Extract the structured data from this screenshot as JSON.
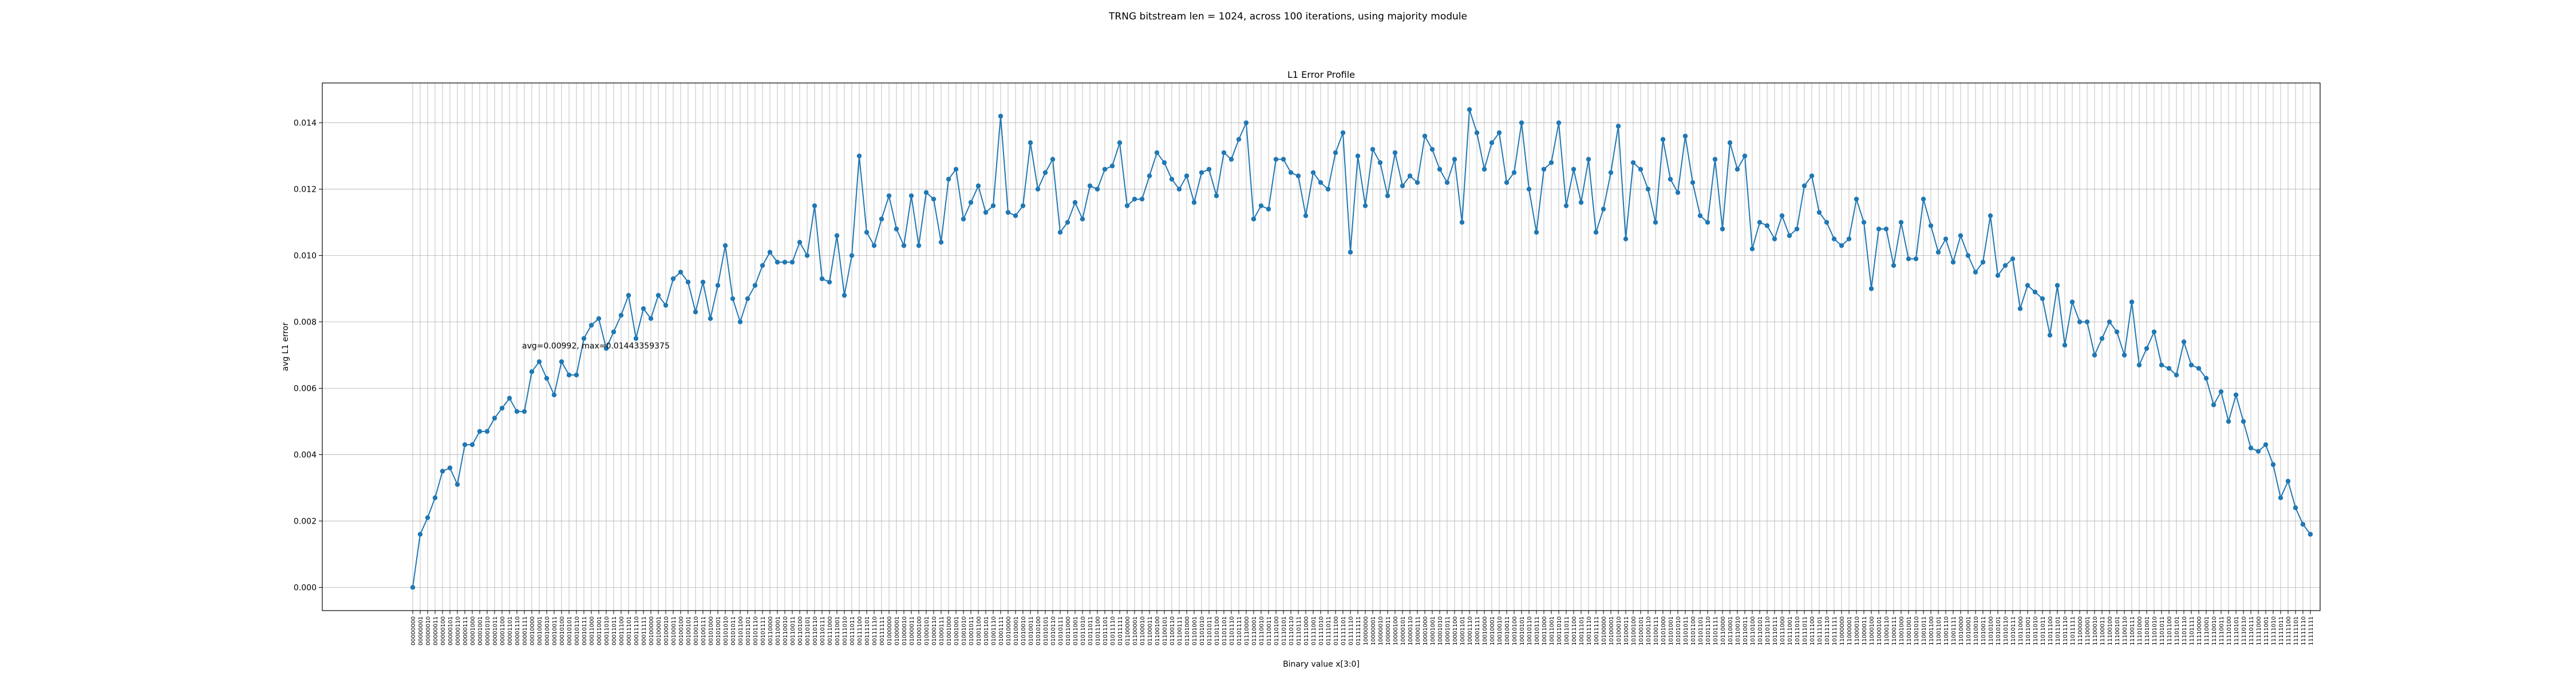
{
  "figure": {
    "suptitle": "TRNG bitstream len = 1024, across 100 iterations, using majority module"
  },
  "chart_data": {
    "type": "line",
    "title": "L1 Error Profile",
    "xlabel": "Binary value x[3:0]",
    "ylabel": "avg L1 error",
    "ylim": [
      -0.0007,
      0.0152
    ],
    "yticks": [
      0.0,
      0.002,
      0.004,
      0.006,
      0.008,
      0.01,
      0.012,
      0.014
    ],
    "ytick_labels": [
      "0.000",
      "0.002",
      "0.004",
      "0.006",
      "0.008",
      "0.010",
      "0.012",
      "0.014"
    ],
    "grid": true,
    "annotation": "avg=0.00992, max=0.01443359375",
    "series": [
      {
        "color": "#1f77b4",
        "values": [
          0.0,
          0.0016,
          0.0021,
          0.0027,
          0.0035,
          0.0036,
          0.0031,
          0.0043,
          0.0043,
          0.0047,
          0.0047,
          0.0051,
          0.0054,
          0.0057,
          0.0053,
          0.0053,
          0.0065,
          0.0068,
          0.0063,
          0.0058,
          0.0068,
          0.0064,
          0.0064,
          0.0075,
          0.0079,
          0.0081,
          0.0072,
          0.0077,
          0.0082,
          0.0088,
          0.0075,
          0.0084,
          0.0081,
          0.0088,
          0.0085,
          0.0093,
          0.0095,
          0.0092,
          0.0083,
          0.0092,
          0.0081,
          0.0091,
          0.0103,
          0.0087,
          0.008,
          0.0087,
          0.0091,
          0.0097,
          0.0101,
          0.0098,
          0.0098,
          0.0098,
          0.0104,
          0.01,
          0.0115,
          0.0093,
          0.0092,
          0.0106,
          0.0088,
          0.01,
          0.013,
          0.0107,
          0.0103,
          0.0111,
          0.0118,
          0.0108,
          0.0103,
          0.0118,
          0.0103,
          0.0119,
          0.0117,
          0.0104,
          0.0123,
          0.0126,
          0.0111,
          0.0116,
          0.0121,
          0.0113,
          0.0115,
          0.0142,
          0.0113,
          0.0112,
          0.0115,
          0.0134,
          0.012,
          0.0125,
          0.0129,
          0.0107,
          0.011,
          0.0116,
          0.0111,
          0.0121,
          0.012,
          0.0126,
          0.0127,
          0.0134,
          0.0115,
          0.0117,
          0.0117,
          0.0124,
          0.0131,
          0.0128,
          0.0123,
          0.012,
          0.0124,
          0.0116,
          0.0125,
          0.0126,
          0.0118,
          0.0131,
          0.0129,
          0.0135,
          0.014,
          0.0111,
          0.0115,
          0.0114,
          0.0129,
          0.0129,
          0.0125,
          0.0124,
          0.0112,
          0.0125,
          0.0122,
          0.012,
          0.0131,
          0.0137,
          0.0101,
          0.013,
          0.0115,
          0.0132,
          0.0128,
          0.0118,
          0.0131,
          0.0121,
          0.0124,
          0.0122,
          0.0136,
          0.0132,
          0.0126,
          0.0122,
          0.0129,
          0.011,
          0.0144,
          0.0137,
          0.0126,
          0.0134,
          0.0137,
          0.0122,
          0.0125,
          0.014,
          0.012,
          0.0107,
          0.0126,
          0.0128,
          0.014,
          0.0115,
          0.0126,
          0.0116,
          0.0129,
          0.0107,
          0.0114,
          0.0125,
          0.0139,
          0.0105,
          0.0128,
          0.0126,
          0.012,
          0.011,
          0.0135,
          0.0123,
          0.0119,
          0.0136,
          0.0122,
          0.0112,
          0.011,
          0.0129,
          0.0108,
          0.0134,
          0.0126,
          0.013,
          0.0102,
          0.011,
          0.0109,
          0.0105,
          0.0112,
          0.0106,
          0.0108,
          0.0121,
          0.0124,
          0.0113,
          0.011,
          0.0105,
          0.0103,
          0.0105,
          0.0117,
          0.011,
          0.009,
          0.0108,
          0.0108,
          0.0097,
          0.011,
          0.0099,
          0.0099,
          0.0117,
          0.0109,
          0.0101,
          0.0105,
          0.0098,
          0.0106,
          0.01,
          0.0095,
          0.0098,
          0.0112,
          0.0094,
          0.0097,
          0.0099,
          0.0084,
          0.0091,
          0.0089,
          0.0087,
          0.0076,
          0.0091,
          0.0073,
          0.0086,
          0.008,
          0.008,
          0.007,
          0.0075,
          0.008,
          0.0077,
          0.007,
          0.0086,
          0.0067,
          0.0072,
          0.0077,
          0.0067,
          0.0066,
          0.0064,
          0.0074,
          0.0067,
          0.0066,
          0.0063,
          0.0055,
          0.0059,
          0.005,
          0.0058,
          0.005,
          0.0042,
          0.0041,
          0.0043,
          0.0037,
          0.0027,
          0.0032,
          0.0024,
          0.0019,
          0.0016
        ]
      }
    ]
  }
}
